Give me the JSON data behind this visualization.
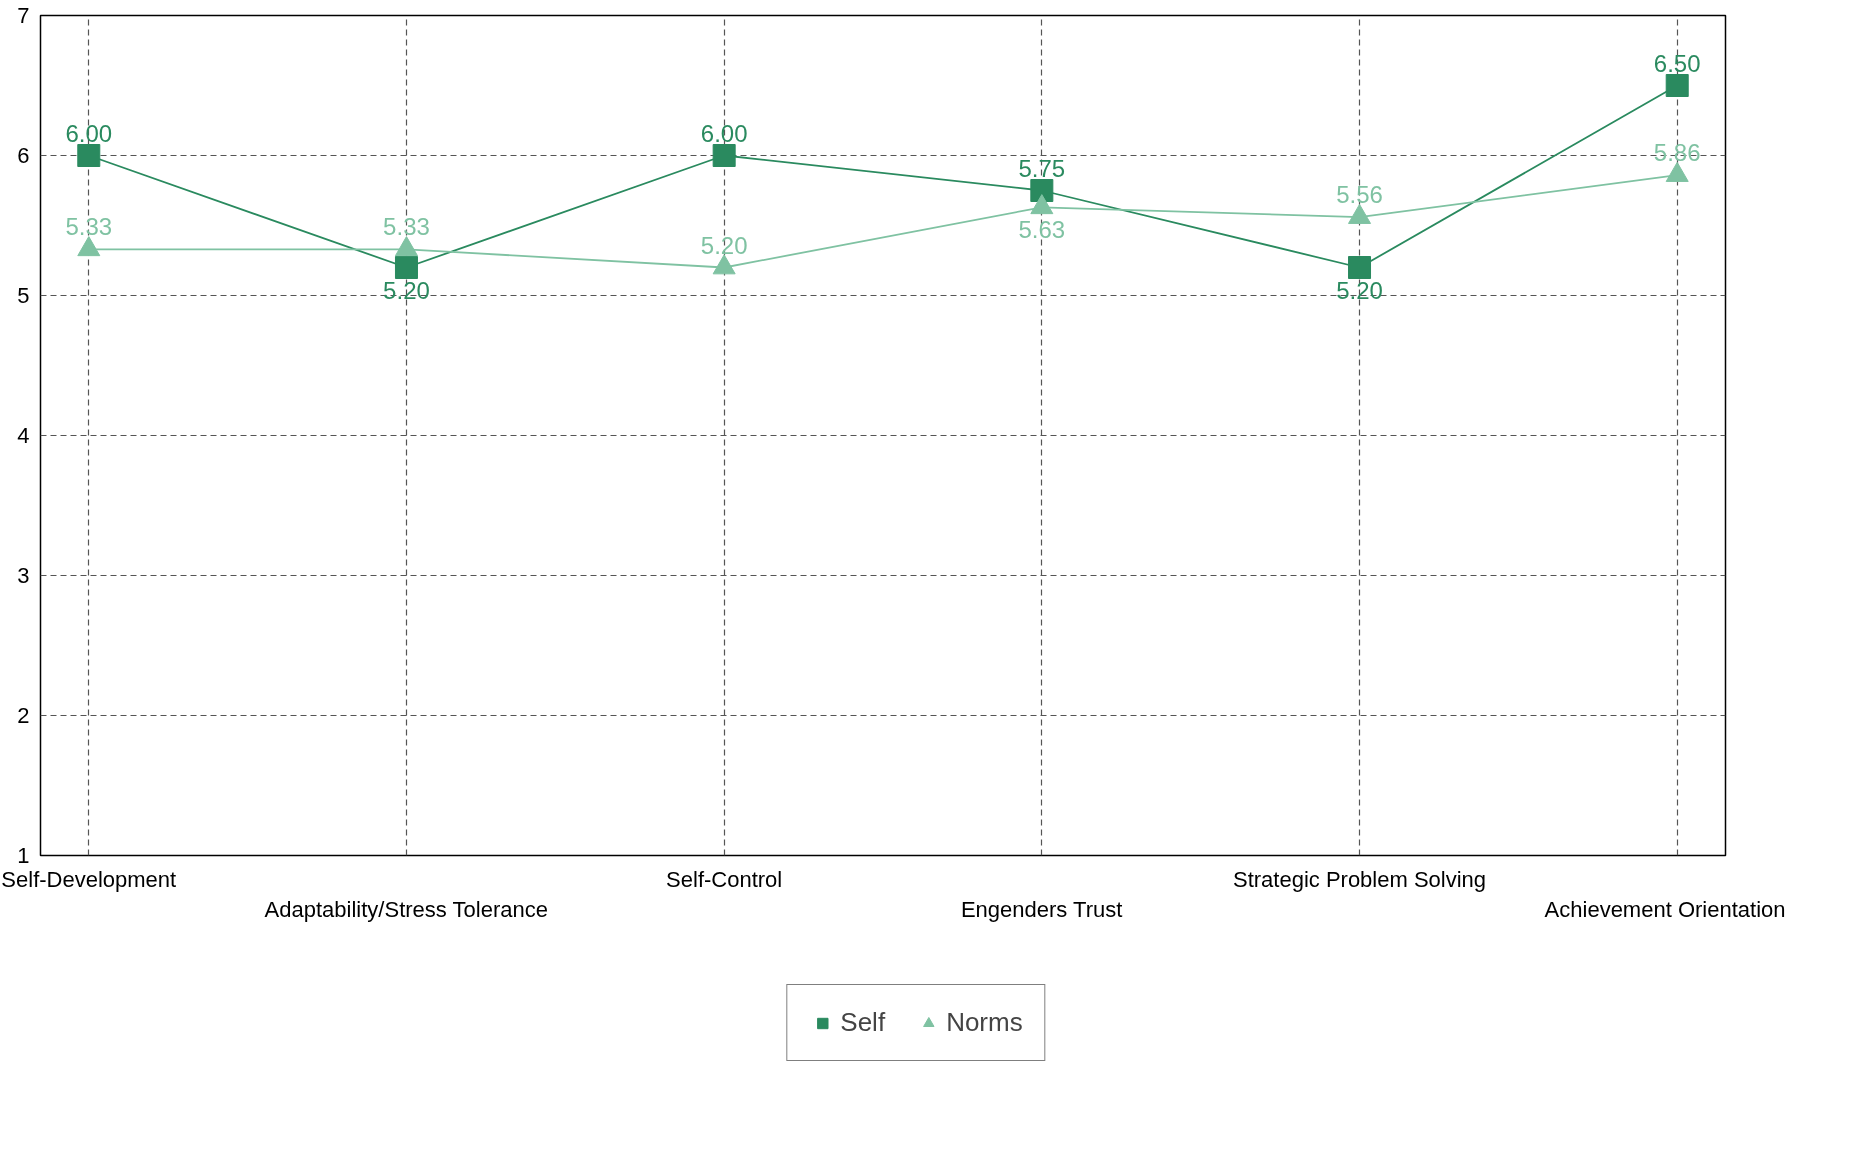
{
  "chart_data": {
    "type": "line",
    "categories": [
      "Self-Development",
      "Adaptability/Stress Tolerance",
      "Self-Control",
      "Engenders Trust",
      "Strategic Problem Solving",
      "Achievement Orientation"
    ],
    "series": [
      {
        "name": "Self",
        "color": "#2a8a5f",
        "marker": "square",
        "values": [
          6.0,
          5.2,
          6.0,
          5.75,
          5.2,
          6.5
        ],
        "value_labels": [
          "6.00",
          "5.20",
          "6.00",
          "5.75",
          "5.20",
          "6.50"
        ]
      },
      {
        "name": "Norms",
        "color": "#7fc2a2",
        "marker": "triangle",
        "values": [
          5.33,
          5.33,
          5.2,
          5.63,
          5.56,
          5.86
        ],
        "value_labels": [
          "5.33",
          "5.33",
          "5.20",
          "5.63",
          "5.56",
          "5.86"
        ]
      }
    ],
    "ylim": [
      1,
      7
    ],
    "yticks": [
      1,
      2,
      3,
      4,
      5,
      6,
      7
    ],
    "grid": true,
    "legend": "bottom"
  }
}
